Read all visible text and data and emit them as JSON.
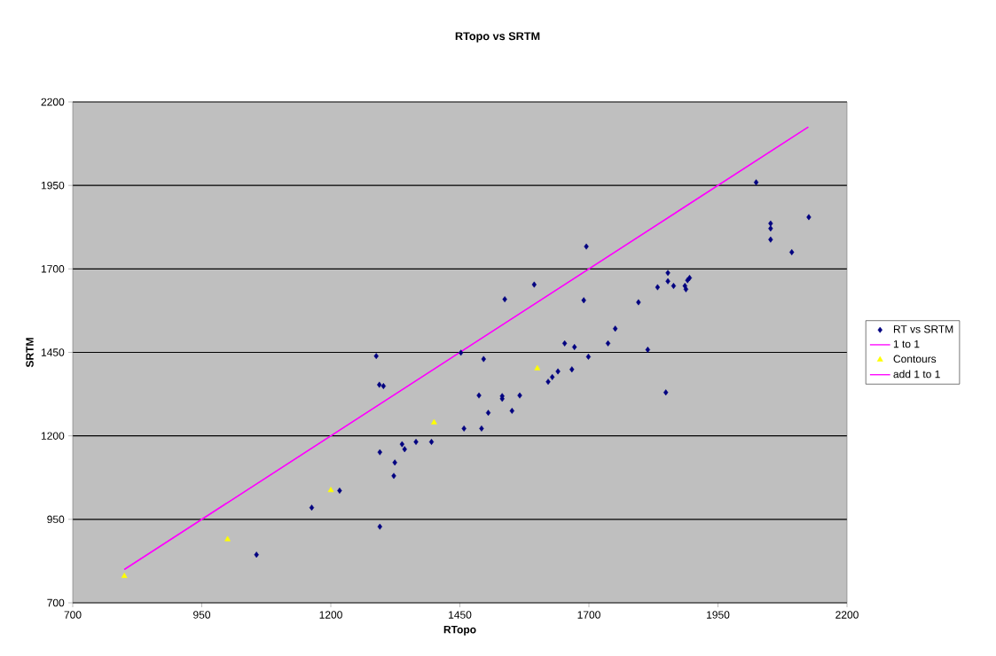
{
  "chart_data": {
    "type": "scatter",
    "title": "RTopo vs SRTM",
    "xlabel": "RTopo",
    "ylabel": "SRTM",
    "xlim": [
      700,
      2200
    ],
    "ylim": [
      700,
      2200
    ],
    "xticks": [
      700,
      950,
      1200,
      1450,
      1700,
      1950,
      2200
    ],
    "yticks": [
      700,
      950,
      1200,
      1450,
      1700,
      1950,
      2200
    ],
    "grid": "y",
    "legend": "right",
    "series": [
      {
        "name": "RT vs SRTM",
        "color": "#000080",
        "marker": "diamond",
        "x": [
          1056,
          1163,
          1217,
          1295,
          1295,
          1324,
          1322,
          1338,
          1343,
          1365,
          1395,
          1294,
          1302,
          1288,
          1695,
          1452,
          1496,
          1537,
          1594,
          1690,
          1796,
          1833,
          1853,
          1853,
          1864,
          1886,
          1888,
          1891,
          1895,
          1751,
          1737,
          1653,
          1672,
          1814,
          1699,
          1667,
          1640,
          1629,
          1621,
          1849,
          1487,
          1532,
          1532,
          1566,
          1551,
          1505,
          1458,
          1492,
          2024,
          2052,
          2052,
          2052,
          2093,
          2126
        ],
        "values": [
          844,
          985,
          1036,
          928,
          1151,
          1120,
          1080,
          1175,
          1160,
          1182,
          1182,
          1353,
          1349,
          1439,
          1767,
          1449,
          1430,
          1609,
          1653,
          1606,
          1600,
          1645,
          1688,
          1663,
          1649,
          1649,
          1639,
          1666,
          1673,
          1521,
          1477,
          1477,
          1466,
          1458,
          1437,
          1399,
          1393,
          1376,
          1362,
          1330,
          1321,
          1319,
          1311,
          1321,
          1275,
          1269,
          1222,
          1222,
          1959,
          1836,
          1821,
          1788,
          1750,
          1855
        ]
      },
      {
        "name": "1 to 1",
        "type": "line",
        "color": "#ff00ff",
        "marker": "none",
        "x": [
          800,
          2125
        ],
        "values": [
          800,
          2125
        ]
      },
      {
        "name": "Contours",
        "color": "#ffff00",
        "marker": "triangle",
        "x": [
          800,
          1000,
          1200,
          1400,
          1600
        ],
        "values": [
          780,
          890,
          1037,
          1240,
          1402
        ]
      },
      {
        "name": "add 1 to 1",
        "type": "line",
        "color": "#ff00ff",
        "marker": "none",
        "x": [
          800,
          2125
        ],
        "values": [
          800,
          2125
        ]
      }
    ]
  }
}
